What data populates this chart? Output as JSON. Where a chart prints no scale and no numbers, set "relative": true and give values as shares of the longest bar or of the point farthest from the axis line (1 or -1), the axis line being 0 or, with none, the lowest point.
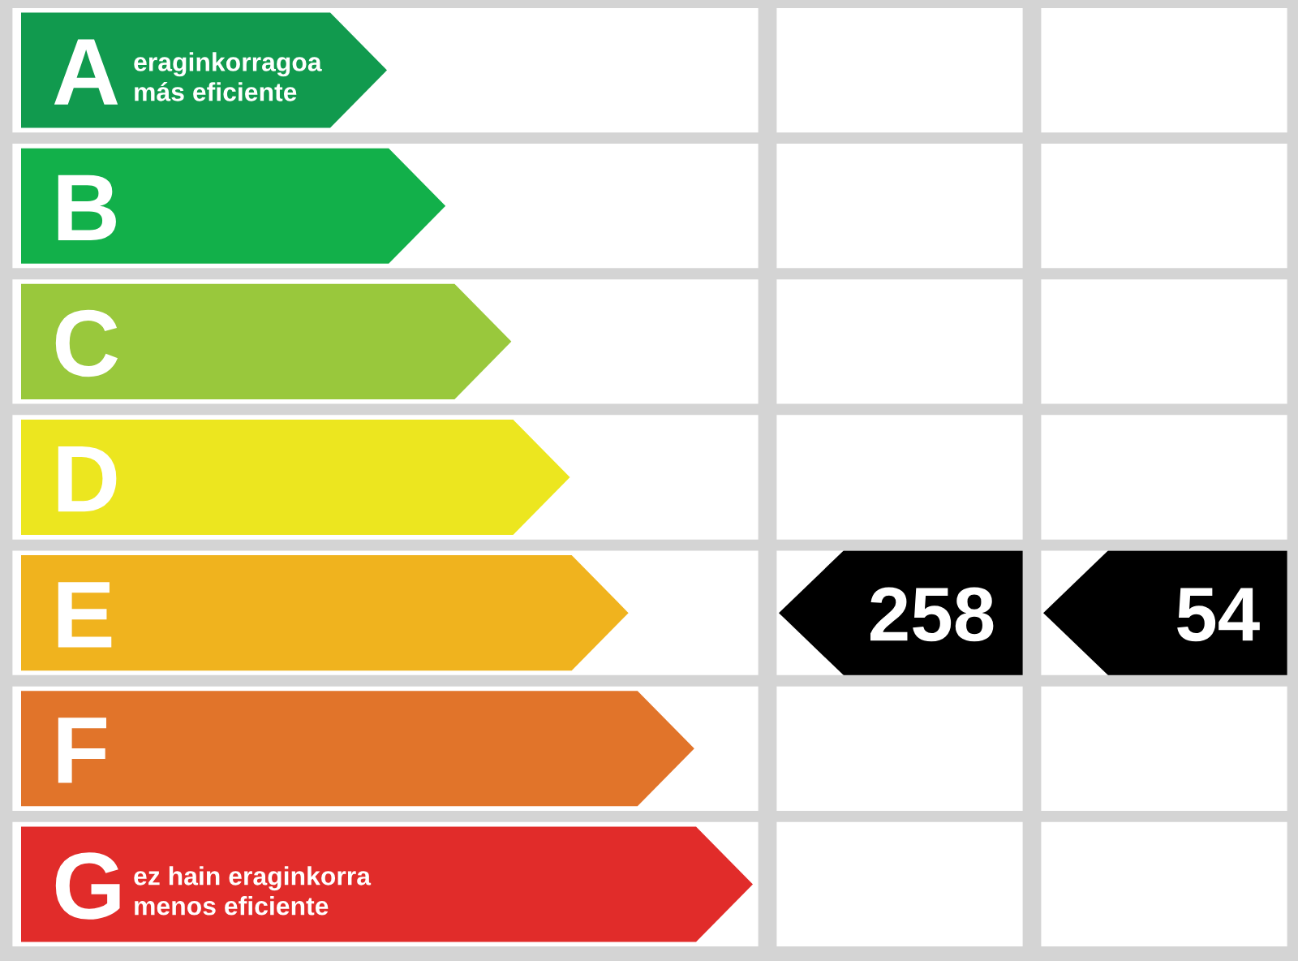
{
  "chart_data": [
    {
      "type": "bar",
      "orientation": "horizontal",
      "relative": true,
      "categories": [
        "A",
        "B",
        "C",
        "D",
        "E",
        "F",
        "G"
      ],
      "values": [
        0.5,
        0.58,
        0.67,
        0.75,
        0.83,
        0.92,
        1
      ],
      "colors": [
        "#119a4e",
        "#12b04a",
        "#99c83c",
        "#ece61f",
        "#f0b31e",
        "#e1742a",
        "#e12c2a"
      ],
      "grid": "y",
      "annotations": [
        "eraginkorragoa\nmás eficiente",
        "ez hain eraginkorra\nmenos eficiente"
      ]
    },
    {
      "type": "other",
      "categories": [
        null,
        null,
        null,
        null,
        null,
        null,
        null
      ],
      "values": [
        null,
        null,
        null,
        null,
        258,
        null,
        null
      ],
      "color": "#000000",
      "data_labels": true
    },
    {
      "type": "other",
      "categories": [
        null,
        null,
        null,
        null,
        null,
        null,
        null
      ],
      "values": [
        null,
        null,
        null,
        null,
        54,
        null,
        null
      ],
      "color": "#000000",
      "data_labels": true
    }
  ]
}
